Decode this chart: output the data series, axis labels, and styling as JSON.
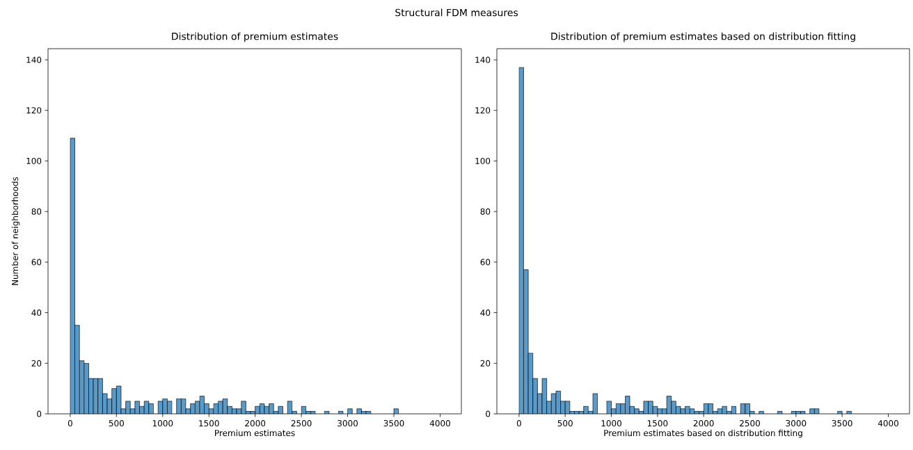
{
  "chart_data": [
    {
      "type": "histogram",
      "title": "Distribution of premium estimates",
      "xlabel": "Premium estimates",
      "ylabel": "Number of neighborhoods",
      "annotations": [
        "Structural FDM measures"
      ],
      "color": "#5a9ac8",
      "bins": [
        0,
        50,
        100,
        150,
        200,
        250,
        300,
        350,
        400,
        450,
        500,
        550,
        600,
        650,
        700,
        750,
        800,
        850,
        900,
        950,
        1000,
        1050,
        1100,
        1150,
        1200,
        1250,
        1300,
        1350,
        1400,
        1450,
        1500,
        1550,
        1600,
        1650,
        1700,
        1750,
        1800,
        1850,
        1900,
        1950,
        2000,
        2050,
        2100,
        2150,
        2200,
        2250,
        2300,
        2350,
        2400,
        2450,
        2500,
        2550,
        2600,
        2650,
        2700,
        2750,
        2800,
        2850,
        2900,
        2950,
        3000,
        3050,
        3100,
        3150,
        3200,
        3250,
        3300,
        3350,
        3400,
        3450,
        3500,
        3550
      ],
      "values": [
        109,
        35,
        21,
        20,
        14,
        14,
        14,
        8,
        6,
        10,
        11,
        2,
        5,
        2,
        5,
        3,
        5,
        4,
        0,
        5,
        6,
        5,
        0,
        6,
        6,
        2,
        4,
        5,
        7,
        4,
        2,
        4,
        5,
        6,
        3,
        2,
        2,
        5,
        1,
        1,
        3,
        4,
        3,
        4,
        1,
        3,
        0,
        5,
        1,
        0,
        3,
        1,
        1,
        0,
        0,
        1,
        0,
        0,
        1,
        0,
        2,
        0,
        2,
        1,
        1,
        0,
        0,
        0,
        0,
        0,
        2
      ],
      "xlim": [
        -240,
        4230
      ],
      "ylim": [
        0,
        144.4
      ],
      "xticks": [
        0,
        500,
        1000,
        1500,
        2000,
        2500,
        3000,
        3500,
        4000
      ],
      "yticks": [
        0,
        20,
        40,
        60,
        80,
        100,
        120,
        140
      ]
    },
    {
      "type": "histogram",
      "title": "Distribution of premium estimates based on distribution fitting",
      "xlabel": "Premium estimates based on distribution fitting",
      "color": "#5a9ac8",
      "bins": [
        0,
        50,
        100,
        150,
        200,
        250,
        300,
        350,
        400,
        450,
        500,
        550,
        600,
        650,
        700,
        750,
        800,
        850,
        900,
        950,
        1000,
        1050,
        1100,
        1150,
        1200,
        1250,
        1300,
        1350,
        1400,
        1450,
        1500,
        1550,
        1600,
        1650,
        1700,
        1750,
        1800,
        1850,
        1900,
        1950,
        2000,
        2050,
        2100,
        2150,
        2200,
        2250,
        2300,
        2350,
        2400,
        2450,
        2500,
        2550,
        2600,
        2650,
        2700,
        2750,
        2800,
        2850,
        2900,
        2950,
        3000,
        3050,
        3100,
        3150,
        3200,
        3250,
        3300,
        3350,
        3400,
        3450,
        3500,
        3550,
        3600
      ],
      "values": [
        137,
        57,
        24,
        14,
        8,
        14,
        5,
        8,
        9,
        5,
        5,
        1,
        1,
        1,
        3,
        1,
        8,
        0,
        0,
        5,
        2,
        4,
        4,
        7,
        3,
        2,
        1,
        5,
        5,
        3,
        2,
        2,
        7,
        5,
        3,
        2,
        3,
        2,
        1,
        1,
        4,
        4,
        1,
        2,
        3,
        1,
        3,
        0,
        4,
        4,
        1,
        0,
        1,
        0,
        0,
        0,
        1,
        0,
        0,
        1,
        1,
        1,
        0,
        2,
        2,
        0,
        0,
        0,
        0,
        1,
        0,
        1
      ],
      "xlim": [
        -240,
        4230
      ],
      "ylim": [
        0,
        144.4
      ],
      "xticks": [
        0,
        500,
        1000,
        1500,
        2000,
        2500,
        3000,
        3500,
        4000
      ],
      "yticks": [
        0,
        20,
        40,
        60,
        80,
        100,
        120,
        140
      ]
    }
  ]
}
